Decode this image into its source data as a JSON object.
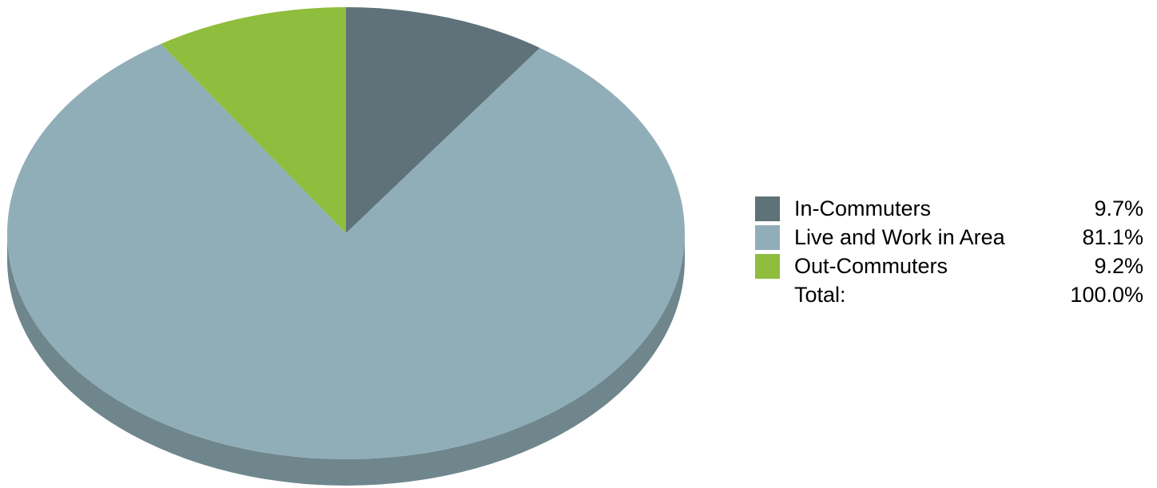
{
  "chart_data": {
    "type": "pie",
    "style": "3d",
    "legend_position": "right",
    "slices": [
      {
        "label": "In-Commuters",
        "value": 9.7,
        "display": "9.7%",
        "color": "#5f7179",
        "side_color": "#4e5d64"
      },
      {
        "label": "Live and Work in Area",
        "value": 81.1,
        "display": "81.1%",
        "color": "#90aeb8",
        "side_color": "#6f868d"
      },
      {
        "label": "Out-Commuters",
        "value": 9.2,
        "display": "9.2%",
        "color": "#8fbd3d",
        "side_color": "#6f9530"
      }
    ],
    "total": {
      "label": "Total:",
      "display": "100.0%"
    }
  }
}
